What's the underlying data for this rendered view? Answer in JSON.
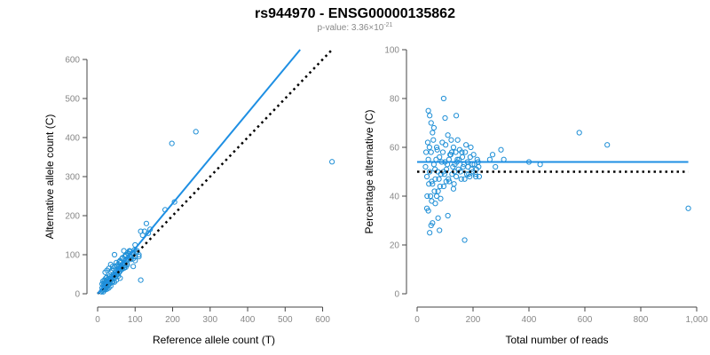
{
  "title": "rs944970 - ENSG00000135862",
  "subtitle_prefix": "p-value: 3.36×10",
  "subtitle_exp": "-21",
  "colors": {
    "points": "#1f8fd6",
    "fit": "#1e8fe3",
    "reference_line": "#000000"
  },
  "chart_data": [
    {
      "type": "scatter",
      "xlabel": "Reference allele count (T)",
      "ylabel": "Alternative allele count (C)",
      "xlim": [
        0,
        620
      ],
      "ylim": [
        0,
        600
      ],
      "xticks": [
        0,
        100,
        200,
        300,
        400,
        500,
        600
      ],
      "yticks": [
        0,
        100,
        200,
        300,
        400,
        500,
        600
      ],
      "fit_line": {
        "style": "solid",
        "x": [
          0,
          540
        ],
        "y": [
          0,
          625
        ]
      },
      "reference_line": {
        "style": "dotted",
        "x": [
          0,
          625
        ],
        "y": [
          0,
          625
        ]
      },
      "points": [
        [
          10,
          5
        ],
        [
          12,
          8
        ],
        [
          15,
          10
        ],
        [
          18,
          12
        ],
        [
          20,
          18
        ],
        [
          22,
          15
        ],
        [
          25,
          20
        ],
        [
          28,
          22
        ],
        [
          30,
          25
        ],
        [
          15,
          20
        ],
        [
          12,
          15
        ],
        [
          18,
          25
        ],
        [
          20,
          30
        ],
        [
          22,
          28
        ],
        [
          25,
          35
        ],
        [
          28,
          32
        ],
        [
          30,
          38
        ],
        [
          32,
          30
        ],
        [
          35,
          40
        ],
        [
          38,
          45
        ],
        [
          40,
          42
        ],
        [
          42,
          50
        ],
        [
          45,
          48
        ],
        [
          48,
          55
        ],
        [
          50,
          52
        ],
        [
          55,
          60
        ],
        [
          58,
          65
        ],
        [
          60,
          58
        ],
        [
          62,
          70
        ],
        [
          65,
          68
        ],
        [
          68,
          75
        ],
        [
          70,
          80
        ],
        [
          72,
          72
        ],
        [
          75,
          85
        ],
        [
          78,
          78
        ],
        [
          80,
          90
        ],
        [
          85,
          95
        ],
        [
          88,
          88
        ],
        [
          90,
          100
        ],
        [
          95,
          105
        ],
        [
          100,
          95
        ],
        [
          105,
          110
        ],
        [
          110,
          100
        ],
        [
          115,
          160
        ],
        [
          120,
          150
        ],
        [
          125,
          160
        ],
        [
          130,
          180
        ],
        [
          135,
          155
        ],
        [
          140,
          165
        ],
        [
          100,
          125
        ],
        [
          180,
          215
        ],
        [
          198,
          385
        ],
        [
          205,
          235
        ],
        [
          262,
          415
        ],
        [
          625,
          338
        ],
        [
          115,
          35
        ],
        [
          95,
          70
        ],
        [
          60,
          85
        ],
        [
          45,
          100
        ],
        [
          35,
          75
        ],
        [
          25,
          60
        ],
        [
          20,
          55
        ],
        [
          30,
          65
        ],
        [
          40,
          70
        ],
        [
          50,
          80
        ],
        [
          55,
          75
        ],
        [
          65,
          90
        ],
        [
          75,
          100
        ],
        [
          85,
          110
        ],
        [
          95,
          90
        ],
        [
          70,
          110
        ],
        [
          80,
          105
        ],
        [
          90,
          95
        ],
        [
          100,
          85
        ],
        [
          110,
          95
        ],
        [
          60,
          40
        ],
        [
          50,
          35
        ],
        [
          40,
          30
        ],
        [
          30,
          15
        ],
        [
          20,
          10
        ],
        [
          15,
          5
        ],
        [
          25,
          12
        ],
        [
          35,
          20
        ],
        [
          45,
          30
        ],
        [
          55,
          45
        ],
        [
          12,
          25
        ],
        [
          14,
          32
        ],
        [
          16,
          28
        ],
        [
          18,
          35
        ],
        [
          22,
          40
        ],
        [
          24,
          42
        ],
        [
          26,
          30
        ],
        [
          28,
          38
        ],
        [
          32,
          45
        ],
        [
          36,
          55
        ],
        [
          38,
          60
        ],
        [
          42,
          65
        ],
        [
          46,
          70
        ],
        [
          52,
          72
        ],
        [
          56,
          68
        ],
        [
          58,
          82
        ],
        [
          62,
          80
        ],
        [
          66,
          92
        ],
        [
          72,
          95
        ],
        [
          76,
          98
        ],
        [
          82,
          102
        ],
        [
          86,
          108
        ],
        [
          92,
          104
        ],
        [
          98,
          112
        ],
        [
          104,
          106
        ],
        [
          16,
          12
        ],
        [
          19,
          18
        ],
        [
          21,
          22
        ],
        [
          23,
          16
        ],
        [
          27,
          28
        ],
        [
          29,
          24
        ],
        [
          31,
          34
        ],
        [
          33,
          26
        ],
        [
          37,
          36
        ],
        [
          39,
          32
        ],
        [
          43,
          38
        ],
        [
          47,
          42
        ],
        [
          49,
          46
        ],
        [
          53,
          50
        ],
        [
          57,
          54
        ],
        [
          63,
          62
        ],
        [
          67,
          64
        ],
        [
          71,
          66
        ],
        [
          75,
          68
        ],
        [
          79,
          74
        ]
      ]
    },
    {
      "type": "scatter",
      "xlabel": "Total number of reads",
      "ylabel": "Percentage alternative (C)",
      "xlim": [
        0,
        1000
      ],
      "ylim": [
        0,
        100
      ],
      "xticks": [
        0,
        200,
        400,
        600,
        800,
        1000
      ],
      "xtick_labels": [
        "0",
        "200",
        "400",
        "600",
        "800",
        "1,000"
      ],
      "yticks": [
        0,
        20,
        40,
        60,
        80,
        100
      ],
      "fit_line": {
        "style": "solid",
        "x": [
          0,
          970
        ],
        "y": [
          54,
          54
        ]
      },
      "reference_line": {
        "style": "dotted",
        "x": [
          0,
          970
        ],
        "y": [
          50,
          50
        ]
      },
      "points": [
        [
          30,
          52
        ],
        [
          35,
          48
        ],
        [
          40,
          55
        ],
        [
          45,
          50
        ],
        [
          50,
          58
        ],
        [
          55,
          45
        ],
        [
          60,
          53
        ],
        [
          65,
          47
        ],
        [
          70,
          60
        ],
        [
          75,
          42
        ],
        [
          80,
          56
        ],
        [
          85,
          49
        ],
        [
          90,
          62
        ],
        [
          95,
          44
        ],
        [
          100,
          54
        ],
        [
          105,
          51
        ],
        [
          110,
          65
        ],
        [
          115,
          46
        ],
        [
          120,
          57
        ],
        [
          125,
          49
        ],
        [
          130,
          60
        ],
        [
          135,
          53
        ],
        [
          140,
          48
        ],
        [
          145,
          63
        ],
        [
          150,
          55
        ],
        [
          155,
          50
        ],
        [
          160,
          58
        ],
        [
          165,
          52
        ],
        [
          170,
          47
        ],
        [
          175,
          61
        ],
        [
          180,
          54
        ],
        [
          185,
          49
        ],
        [
          190,
          56
        ],
        [
          195,
          51
        ],
        [
          200,
          50
        ],
        [
          205,
          53
        ],
        [
          210,
          48
        ],
        [
          215,
          55
        ],
        [
          220,
          52
        ],
        [
          40,
          75
        ],
        [
          45,
          73
        ],
        [
          50,
          70
        ],
        [
          95,
          80
        ],
        [
          140,
          73
        ],
        [
          100,
          72
        ],
        [
          60,
          68
        ],
        [
          55,
          66
        ],
        [
          35,
          35
        ],
        [
          40,
          34
        ],
        [
          50,
          28
        ],
        [
          45,
          25
        ],
        [
          55,
          29
        ],
        [
          65,
          37
        ],
        [
          70,
          40
        ],
        [
          75,
          31
        ],
        [
          80,
          26
        ],
        [
          110,
          32
        ],
        [
          130,
          43
        ],
        [
          170,
          22
        ],
        [
          260,
          55
        ],
        [
          270,
          57
        ],
        [
          280,
          52
        ],
        [
          300,
          59
        ],
        [
          310,
          55
        ],
        [
          400,
          54
        ],
        [
          440,
          53
        ],
        [
          580,
          66
        ],
        [
          680,
          61
        ],
        [
          970,
          35
        ],
        [
          32,
          58
        ],
        [
          38,
          62
        ],
        [
          42,
          45
        ],
        [
          48,
          40
        ],
        [
          52,
          38
        ],
        [
          58,
          63
        ],
        [
          62,
          42
        ],
        [
          68,
          55
        ],
        [
          72,
          59
        ],
        [
          78,
          47
        ],
        [
          82,
          44
        ],
        [
          88,
          54
        ],
        [
          92,
          58
        ],
        [
          98,
          49
        ],
        [
          102,
          61
        ],
        [
          108,
          53
        ],
        [
          112,
          47
        ],
        [
          118,
          57
        ],
        [
          122,
          63
        ],
        [
          128,
          52
        ],
        [
          132,
          45
        ],
        [
          138,
          58
        ],
        [
          142,
          54
        ],
        [
          148,
          51
        ],
        [
          152,
          59
        ],
        [
          158,
          47
        ],
        [
          162,
          56
        ],
        [
          168,
          53
        ],
        [
          172,
          58
        ],
        [
          178,
          49
        ],
        [
          182,
          52
        ],
        [
          188,
          48
        ],
        [
          192,
          60
        ],
        [
          198,
          53
        ],
        [
          202,
          57
        ],
        [
          208,
          49
        ],
        [
          212,
          51
        ],
        [
          218,
          54
        ],
        [
          222,
          48
        ],
        [
          36,
          40
        ],
        [
          44,
          60
        ],
        [
          52,
          46
        ],
        [
          64,
          51
        ],
        [
          74,
          50
        ],
        [
          84,
          39
        ],
        [
          94,
          50
        ],
        [
          104,
          46
        ],
        [
          114,
          55
        ],
        [
          124,
          58
        ],
        [
          134,
          50
        ],
        [
          144,
          55
        ]
      ]
    }
  ]
}
